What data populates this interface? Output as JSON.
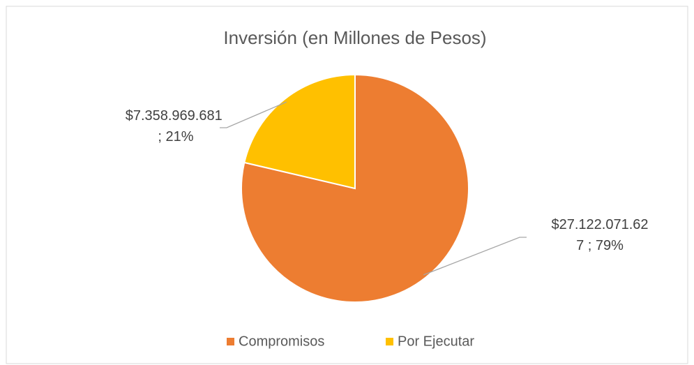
{
  "chart_data": {
    "type": "pie",
    "title": "Inversión (en Millones de Pesos)",
    "categories": [
      "Compromisos",
      "Por Ejecutar"
    ],
    "values": [
      27122071627,
      7358969681
    ],
    "value_labels": [
      "$27.122.071.627 ; 79%",
      "$7.358.969.681 ; 21%"
    ],
    "colors": [
      "#ed7d31",
      "#ffc000"
    ],
    "legend": "bottom"
  }
}
